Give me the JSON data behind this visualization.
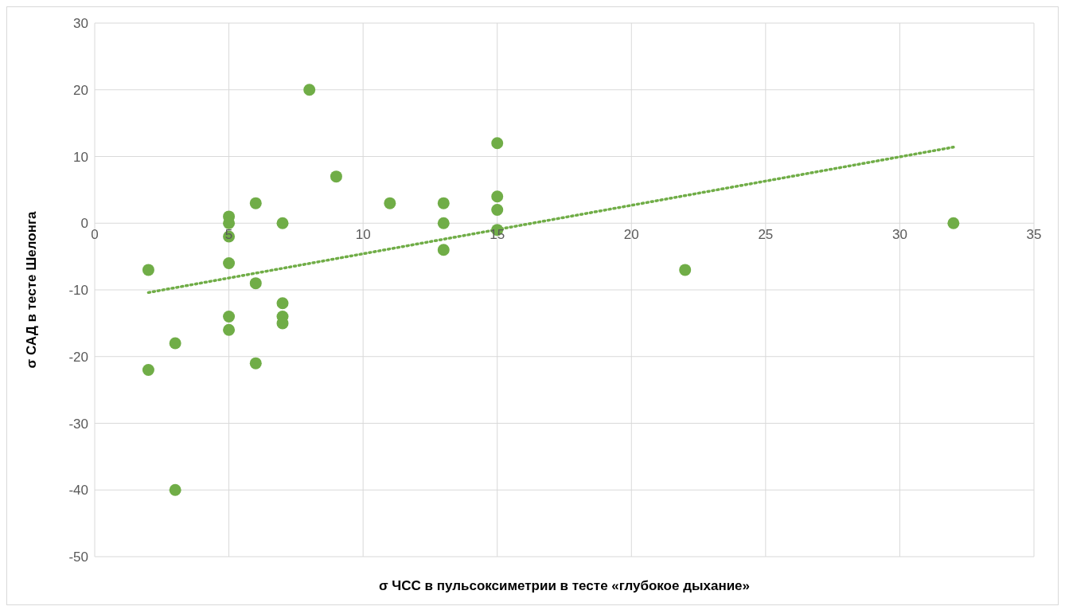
{
  "chart_data": {
    "type": "scatter",
    "xlabel": "σ ЧСС в пульсоксиметрии в тесте «глубокое дыхание»",
    "ylabel": "σ САД в тесте Шелонга",
    "xlim": [
      0,
      35
    ],
    "xticks": [
      0,
      5,
      10,
      15,
      20,
      25,
      30,
      35
    ],
    "ylim": [
      -50,
      30
    ],
    "yticks": [
      -50,
      -40,
      -30,
      -20,
      -10,
      0,
      10,
      20,
      30
    ],
    "grid": true,
    "marker": "circle",
    "series": [
      {
        "type": "scatter",
        "color": "#70ad47",
        "x": [
          2,
          2,
          3,
          3,
          5,
          5,
          5,
          5,
          5,
          5,
          6,
          6,
          6,
          7,
          7,
          7,
          7,
          8,
          9,
          11,
          13,
          13,
          13,
          15,
          15,
          15,
          15,
          22,
          32
        ],
        "values": [
          -7,
          -22,
          -18,
          -40,
          1,
          0,
          -2,
          -6,
          -14,
          -16,
          3,
          -9,
          -21,
          0,
          -12,
          -14,
          -15,
          20,
          7,
          3,
          3,
          0,
          -4,
          12,
          4,
          2,
          -1,
          -7,
          0
        ]
      },
      {
        "type": "line",
        "color": "#70ad47",
        "line_style": "dotted",
        "marker": "none",
        "x": [
          2,
          32
        ],
        "values": [
          -10.4,
          11.4
        ]
      }
    ]
  }
}
